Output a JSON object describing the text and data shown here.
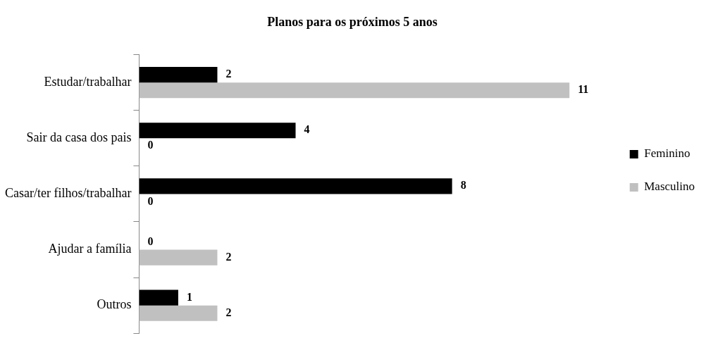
{
  "chart_data": {
    "type": "bar",
    "orientation": "horizontal",
    "title": "Planos para os próximos 5 anos",
    "categories": [
      "Estudar/trabalhar",
      "Sair da casa dos pais",
      "Casar/ter filhos/trabalhar",
      "Ajudar a família",
      "Outros"
    ],
    "series": [
      {
        "name": "Feminino",
        "color": "#000000",
        "values": [
          2,
          4,
          8,
          0,
          1
        ]
      },
      {
        "name": "Masculino",
        "color": "#c0c0c0",
        "values": [
          11,
          0,
          0,
          2,
          2
        ]
      }
    ],
    "data_labels": true,
    "legend": "right"
  }
}
